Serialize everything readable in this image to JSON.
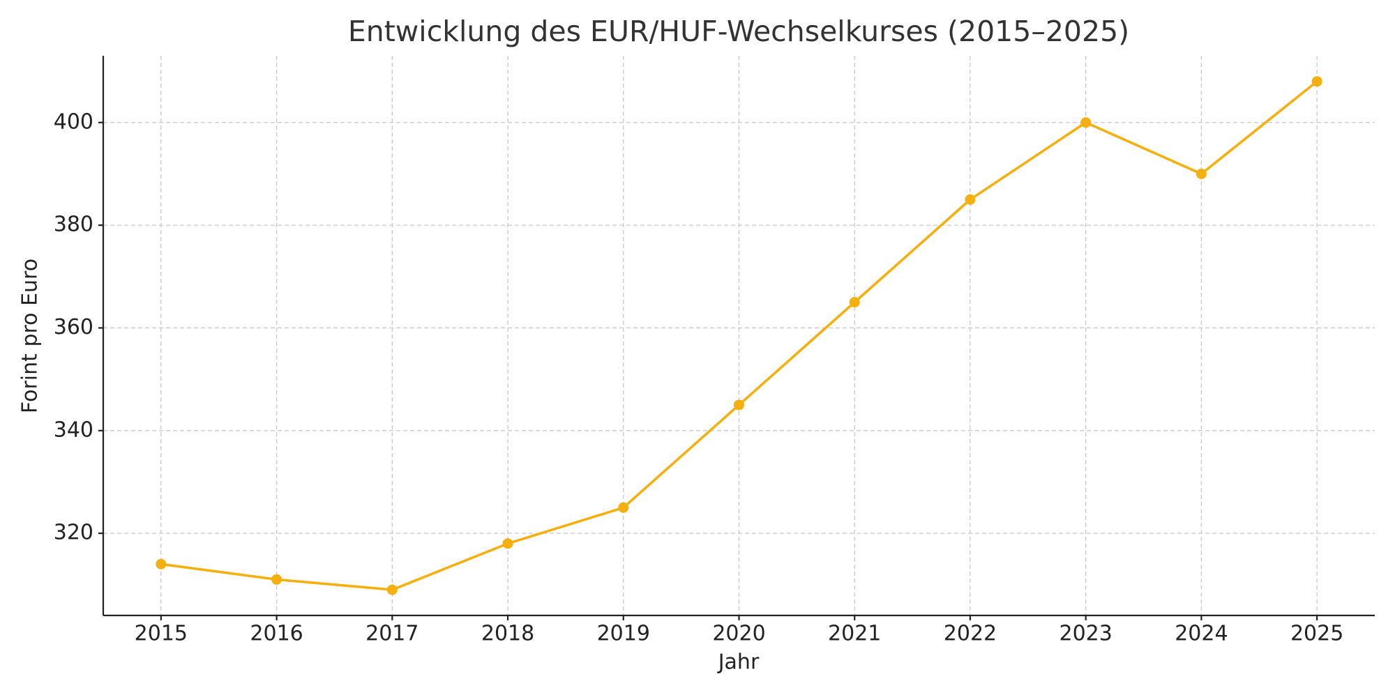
{
  "chart_data": {
    "type": "line",
    "title": "Entwicklung des EUR/HUF-Wechselkurses (2015–2025)",
    "x_label": "Jahr",
    "y_label": "Forint pro Euro",
    "x": [
      2015,
      2016,
      2017,
      2018,
      2019,
      2020,
      2021,
      2022,
      2023,
      2024,
      2025
    ],
    "series": [
      {
        "name": "EUR/HUF",
        "color": "#f5b00f",
        "values": [
          314,
          311,
          309,
          318,
          325,
          345,
          365,
          385,
          400,
          390,
          408
        ]
      }
    ],
    "xlim": [
      2014.5,
      2025.5
    ],
    "xticks": [
      2015,
      2016,
      2017,
      2018,
      2019,
      2020,
      2021,
      2022,
      2023,
      2024,
      2025
    ],
    "ylim": [
      304,
      413
    ],
    "yticks": [
      320,
      340,
      360,
      380,
      400
    ],
    "grid": true
  }
}
